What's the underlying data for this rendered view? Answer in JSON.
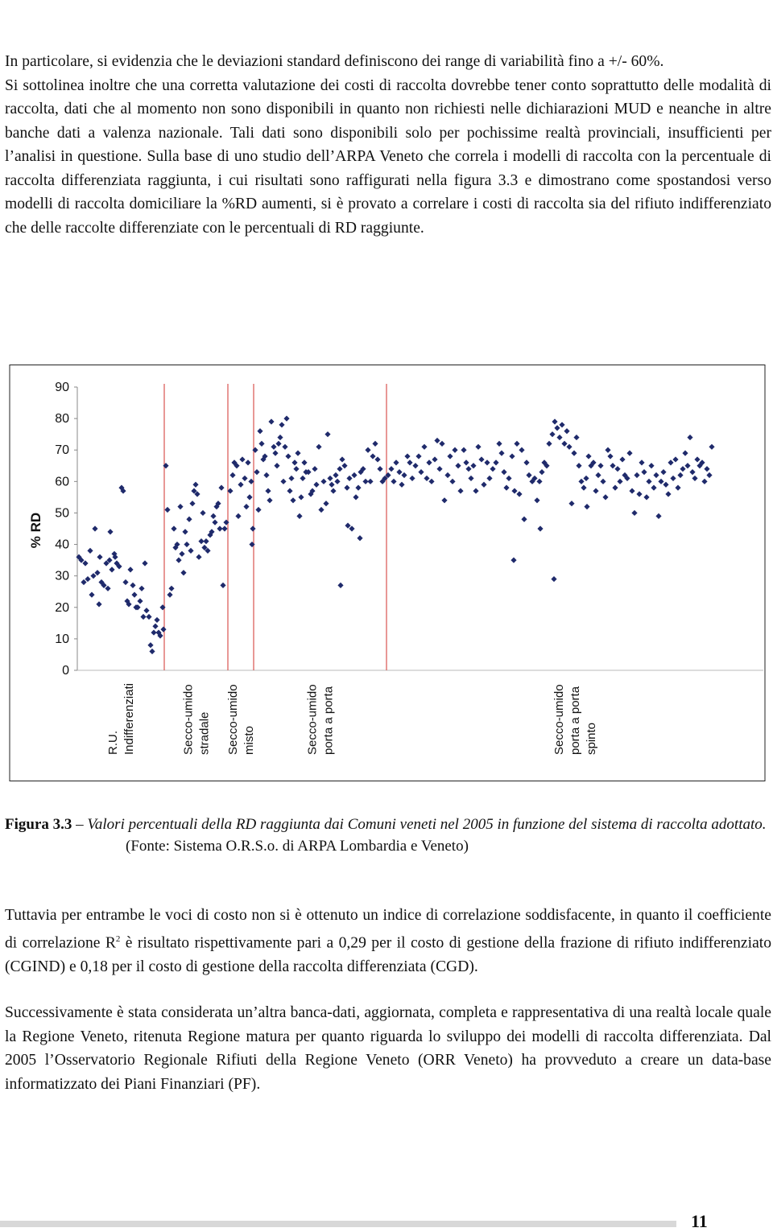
{
  "paragraphs_top": [
    "In particolare, si evidenzia che le deviazioni standard definiscono dei range di variabilità fino a +/- 60%.",
    "Si sottolinea inoltre che una corretta valutazione dei costi di raccolta dovrebbe tener conto soprattutto delle modalità di raccolta, dati che al momento non sono disponibili in quanto non richiesti nelle dichiarazioni MUD e neanche in altre banche dati a valenza nazionale. Tali dati sono disponibili solo per pochissime realtà provinciali, insufficienti per l’analisi in questione. Sulla base di uno studio dell’ARPA Veneto che correla i modelli di raccolta con la percentuale di raccolta differenziata raggiunta, i cui risultati sono raffigurati nella figura 3.3 e dimostrano come spostandosi verso modelli di raccolta domiciliare la %RD aumenti, si è provato a correlare i costi di raccolta sia del rifiuto indifferenziato che delle raccolte differenziate con le percentuali di RD raggiunte."
  ],
  "chart_data": {
    "type": "scatter",
    "y_label": "% RD",
    "ylim": [
      0,
      90
    ],
    "yticks": [
      0,
      10,
      20,
      30,
      40,
      50,
      60,
      70,
      80,
      90
    ],
    "xlim": [
      0,
      852
    ],
    "separators": [
      108,
      187,
      219,
      384
    ],
    "separator_color": "#d9534f",
    "groups": [
      [
        "R.U.",
        "Indifferenziati"
      ],
      [
        "Secco-umido",
        "stradale"
      ],
      [
        "Secco-umido",
        "misto"
      ],
      [
        "Secco-umido",
        "porta a porta"
      ],
      [
        "Secco-umido",
        "porta a porta",
        "spinto"
      ]
    ],
    "series": [
      {
        "color": "#1f2a6b",
        "x": [
          2,
          5,
          8,
          10,
          13,
          16,
          18,
          20,
          22,
          25,
          27,
          28,
          30,
          33,
          36,
          38,
          40,
          41,
          43,
          46,
          47,
          49,
          52,
          55,
          57,
          60,
          62,
          64,
          66,
          69,
          71,
          73,
          75,
          78,
          80,
          82,
          84,
          86,
          89,
          91,
          93,
          95,
          97,
          99,
          101,
          103,
          106,
          107,
          110,
          112,
          115,
          117,
          120,
          122,
          124,
          126,
          128,
          130,
          132,
          134,
          136,
          139,
          141,
          143,
          145,
          147,
          149,
          151,
          154,
          156,
          158,
          160,
          162,
          165,
          167,
          169,
          171,
          173,
          175,
          177,
          179,
          181,
          183,
          185,
          190,
          193,
          195,
          198,
          200,
          203,
          205,
          208,
          210,
          212,
          214,
          216,
          217,
          218,
          221,
          223,
          225,
          227,
          229,
          231,
          233,
          235,
          237,
          239,
          241,
          244,
          246,
          248,
          250,
          252,
          254,
          256,
          258,
          260,
          262,
          264,
          266,
          268,
          270,
          272,
          274,
          276,
          278,
          280,
          282,
          284,
          287,
          290,
          292,
          295,
          297,
          300,
          303,
          306,
          309,
          311,
          314,
          316,
          318,
          321,
          323,
          326,
          327,
          329,
          332,
          335,
          336,
          338,
          341,
          344,
          346,
          349,
          351,
          352,
          355,
          358,
          361,
          364,
          367,
          370,
          373,
          376,
          379,
          382,
          386,
          390,
          393,
          396,
          400,
          403,
          406,
          410,
          413,
          416,
          420,
          424,
          427,
          431,
          434,
          437,
          440,
          444,
          447,
          450,
          453,
          456,
          460,
          463,
          466,
          469,
          473,
          476,
          480,
          483,
          486,
          489,
          492,
          495,
          498,
          502,
          505,
          509,
          512,
          516,
          520,
          524,
          527,
          530,
          533,
          536,
          540,
          542,
          543,
          546,
          549,
          552,
          555,
          558,
          561,
          565,
          568,
          571,
          574,
          575,
          577,
          580,
          583,
          586,
          590,
          592,
          593,
          596,
          599,
          602,
          605,
          608,
          611,
          614,
          617,
          620,
          623,
          626,
          629,
          632,
          633,
          635,
          638,
          641,
          644,
          647,
          650,
          653,
          656,
          659,
          662,
          665,
          668,
          671,
          674,
          677,
          680,
          683,
          686,
          689,
          692,
          695,
          698,
          701,
          704,
          707,
          710,
          713,
          716,
          719,
          722,
          725,
          728,
          731,
          734,
          737,
          740,
          743,
          746,
          749,
          752,
          755,
          758,
          761,
          764,
          767,
          770,
          773,
          776,
          779,
          782,
          785,
          788
        ],
        "values": [
          36,
          35,
          28,
          34,
          29,
          38,
          24,
          30,
          45,
          31,
          21,
          36,
          28,
          27,
          34,
          26,
          35,
          44,
          32,
          37,
          36,
          34,
          33,
          58,
          57,
          28,
          22,
          21,
          32,
          27,
          24,
          20,
          20,
          22,
          26,
          17,
          34,
          19,
          17,
          8,
          6,
          12,
          14,
          16,
          12,
          11,
          20,
          13,
          65,
          51,
          24,
          26,
          45,
          39,
          40,
          35,
          52,
          37,
          31,
          44,
          40,
          48,
          38,
          53,
          57,
          59,
          56,
          36,
          41,
          50,
          39,
          41,
          38,
          43,
          44,
          49,
          47,
          52,
          53,
          45,
          58,
          27,
          45,
          47,
          57,
          62,
          66,
          65,
          49,
          59,
          67,
          61,
          52,
          66,
          55,
          60,
          40,
          45,
          70,
          63,
          51,
          76,
          72,
          67,
          68,
          62,
          57,
          54,
          79,
          71,
          69,
          65,
          72,
          74,
          78,
          60,
          71,
          80,
          68,
          57,
          61,
          54,
          66,
          64,
          69,
          49,
          55,
          61,
          66,
          63,
          63,
          56,
          57,
          64,
          59,
          71,
          51,
          60,
          53,
          75,
          61,
          59,
          57,
          62,
          60,
          64,
          27,
          67,
          65,
          58,
          46,
          61,
          45,
          62,
          55,
          58,
          42,
          63,
          64,
          60,
          70,
          60,
          68,
          72,
          67,
          64,
          60,
          61,
          62,
          64,
          60,
          66,
          63,
          59,
          62,
          68,
          66,
          61,
          65,
          68,
          63,
          71,
          61,
          66,
          60,
          67,
          73,
          64,
          72,
          54,
          62,
          68,
          60,
          70,
          65,
          57,
          70,
          66,
          64,
          61,
          65,
          57,
          71,
          67,
          59,
          66,
          61,
          64,
          66,
          72,
          69,
          63,
          58,
          61,
          68,
          35,
          57,
          72,
          56,
          70,
          48,
          66,
          62,
          60,
          61,
          54,
          60,
          45,
          63,
          66,
          65,
          72,
          75,
          29,
          79,
          77,
          74,
          78,
          72,
          76,
          71,
          53,
          69,
          74,
          65,
          60,
          58,
          61,
          52,
          68,
          65,
          66,
          57,
          62,
          65,
          60,
          55,
          70,
          68,
          65,
          58,
          64,
          60,
          67,
          62,
          61,
          69,
          57,
          50,
          62,
          56,
          66,
          63,
          55,
          60,
          65,
          58,
          62,
          49,
          60,
          63,
          59,
          56,
          66,
          61,
          67,
          58,
          62,
          64,
          69,
          65,
          74,
          63,
          61,
          67,
          65,
          66,
          60,
          64,
          62,
          71
        ]
      }
    ]
  },
  "caption": {
    "label": "Figura 3.3",
    "text": "– Valori percentuali della RD raggiunta dai Comuni veneti nel 2005 in funzione del sistema di raccolta adottato.",
    "source": "(Fonte: Sistema O.R.S.o. di ARPA Lombardia e Veneto)"
  },
  "paragraphs_bottom": [
    [
      "Tuttavia per entrambe le voci di costo non si è ottenuto un indice di correlazione soddisfacente, in quanto il coefficiente di correlazione R",
      "2",
      " è risultato rispettivamente pari a 0,29 per il costo di gestione della frazione di rifiuto indifferenziato (CGIND) e 0,18 per il costo di gestione della raccolta differenziata (CGD)."
    ],
    "Successivamente è stata considerata un’altra banca-dati, aggiornata, completa e rappresentativa di una realtà locale quale la Regione Veneto, ritenuta Regione matura per quanto riguarda lo sviluppo dei modelli di raccolta differenziata. Dal 2005 l’Osservatorio Regionale Rifiuti della Regione Veneto (ORR Veneto) ha provveduto a creare un data-base informatizzato dei Piani Finanziari (PF)."
  ],
  "page_number": "11"
}
